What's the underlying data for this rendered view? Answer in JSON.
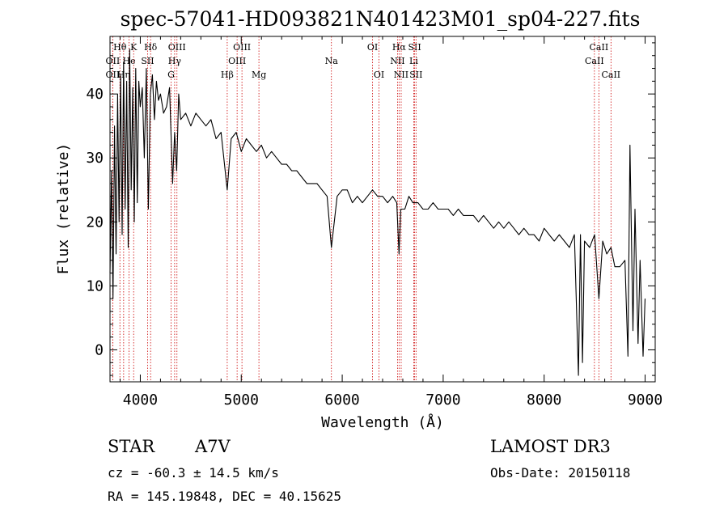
{
  "chart_data": {
    "type": "line",
    "title": "spec-57041-HD093821N401423M01_sp04-227.fits",
    "xlabel": "Wavelength (Å)",
    "ylabel": "Flux (relative)",
    "xlim": [
      3700,
      9100
    ],
    "ylim": [
      -5,
      49
    ],
    "x_ticks": [
      4000,
      5000,
      6000,
      7000,
      8000,
      9000
    ],
    "y_ticks": [
      0,
      10,
      20,
      30,
      40
    ],
    "grid": false,
    "line_color": "#000000",
    "marker_color": "#cc0000",
    "line_markers": [
      {
        "label": "OII",
        "x": 3727,
        "row": 2
      },
      {
        "label": "Hθ",
        "x": 3798,
        "row": 0
      },
      {
        "label": "OII",
        "x": 3727,
        "row": 1
      },
      {
        "label": "Hη",
        "x": 3835,
        "row": 2
      },
      {
        "label": "He",
        "x": 3889,
        "row": 1
      },
      {
        "label": "K",
        "x": 3934,
        "row": 0
      },
      {
        "label": "SII",
        "x": 4072,
        "row": 1
      },
      {
        "label": "Hδ",
        "x": 4102,
        "row": 0
      },
      {
        "label": "OIII",
        "x": 4363,
        "row": 0
      },
      {
        "label": "Hγ",
        "x": 4340,
        "row": 1
      },
      {
        "label": "G",
        "x": 4305,
        "row": 2
      },
      {
        "label": "OIII",
        "x": 5007,
        "row": 0
      },
      {
        "label": "OIII",
        "x": 4959,
        "row": 1
      },
      {
        "label": "Hβ",
        "x": 4861,
        "row": 2
      },
      {
        "label": "Mg",
        "x": 5175,
        "row": 2
      },
      {
        "label": "Na",
        "x": 5893,
        "row": 1
      },
      {
        "label": "OI",
        "x": 6300,
        "row": 0
      },
      {
        "label": "OI",
        "x": 6364,
        "row": 2
      },
      {
        "label": "Hα",
        "x": 6563,
        "row": 0
      },
      {
        "label": "NII",
        "x": 6548,
        "row": 1
      },
      {
        "label": "NII",
        "x": 6584,
        "row": 2
      },
      {
        "label": "SII",
        "x": 6717,
        "row": 0
      },
      {
        "label": "Li",
        "x": 6708,
        "row": 1
      },
      {
        "label": "SII",
        "x": 6731,
        "row": 2
      },
      {
        "label": "CaII",
        "x": 8542,
        "row": 0
      },
      {
        "label": "CaII",
        "x": 8498,
        "row": 1
      },
      {
        "label": "CaII",
        "x": 8662,
        "row": 2
      }
    ],
    "series": [
      {
        "x": [
          3700,
          3715,
          3730,
          3745,
          3760,
          3775,
          3790,
          3805,
          3820,
          3835,
          3850,
          3865,
          3880,
          3895,
          3910,
          3925,
          3940,
          3955,
          3970,
          3985,
          4000,
          4020,
          4040,
          4060,
          4080,
          4100,
          4120,
          4140,
          4160,
          4180,
          4200,
          4230,
          4260,
          4290,
          4320,
          4340,
          4360,
          4380,
          4400,
          4450,
          4500,
          4550,
          4600,
          4650,
          4700,
          4750,
          4800,
          4861,
          4900,
          4950,
          5000,
          5050,
          5100,
          5150,
          5200,
          5250,
          5300,
          5350,
          5400,
          5450,
          5500,
          5550,
          5600,
          5650,
          5700,
          5750,
          5800,
          5850,
          5893,
          5950,
          6000,
          6050,
          6100,
          6150,
          6200,
          6250,
          6300,
          6350,
          6400,
          6450,
          6500,
          6540,
          6563,
          6580,
          6620,
          6660,
          6700,
          6750,
          6800,
          6850,
          6900,
          6950,
          7000,
          7050,
          7100,
          7150,
          7200,
          7250,
          7300,
          7350,
          7400,
          7450,
          7500,
          7550,
          7600,
          7650,
          7700,
          7750,
          7800,
          7850,
          7900,
          7950,
          8000,
          8050,
          8100,
          8150,
          8200,
          8250,
          8300,
          8340,
          8360,
          8380,
          8400,
          8450,
          8500,
          8542,
          8580,
          8620,
          8662,
          8700,
          8750,
          8800,
          8830,
          8850,
          8880,
          8900,
          8930,
          8950,
          8980,
          9000
        ],
        "values": [
          12,
          28,
          8,
          35,
          15,
          40,
          20,
          43,
          18,
          45,
          22,
          42,
          16,
          47,
          25,
          41,
          20,
          44,
          23,
          42,
          38,
          41,
          30,
          44,
          22,
          40,
          43,
          36,
          42,
          39,
          40,
          37,
          38,
          41,
          26,
          34,
          28,
          40,
          36,
          37,
          35,
          37,
          36,
          35,
          36,
          33,
          34,
          25,
          33,
          34,
          31,
          33,
          32,
          31,
          32,
          30,
          31,
          30,
          29,
          29,
          28,
          28,
          27,
          26,
          26,
          26,
          25,
          24,
          16,
          24,
          25,
          25,
          23,
          24,
          23,
          24,
          25,
          24,
          24,
          23,
          24,
          23,
          15,
          22,
          22,
          24,
          23,
          23,
          22,
          22,
          23,
          22,
          22,
          22,
          21,
          22,
          21,
          21,
          21,
          20,
          21,
          20,
          19,
          20,
          19,
          20,
          19,
          18,
          19,
          18,
          18,
          17,
          19,
          18,
          17,
          18,
          17,
          16,
          18,
          -4,
          18,
          -2,
          17,
          16,
          18,
          8,
          17,
          15,
          16,
          13,
          13,
          14,
          -1,
          32,
          3,
          22,
          1,
          14,
          -1,
          8
        ]
      }
    ]
  },
  "info": {
    "object_class": "STAR",
    "subclass": "A7V",
    "survey": "LAMOST DR3",
    "cz": "cz = -60.3 ± 14.5 km/s",
    "obs_date": "Obs-Date: 20150118",
    "coords": "RA = 145.19848, DEC =  40.15625"
  }
}
